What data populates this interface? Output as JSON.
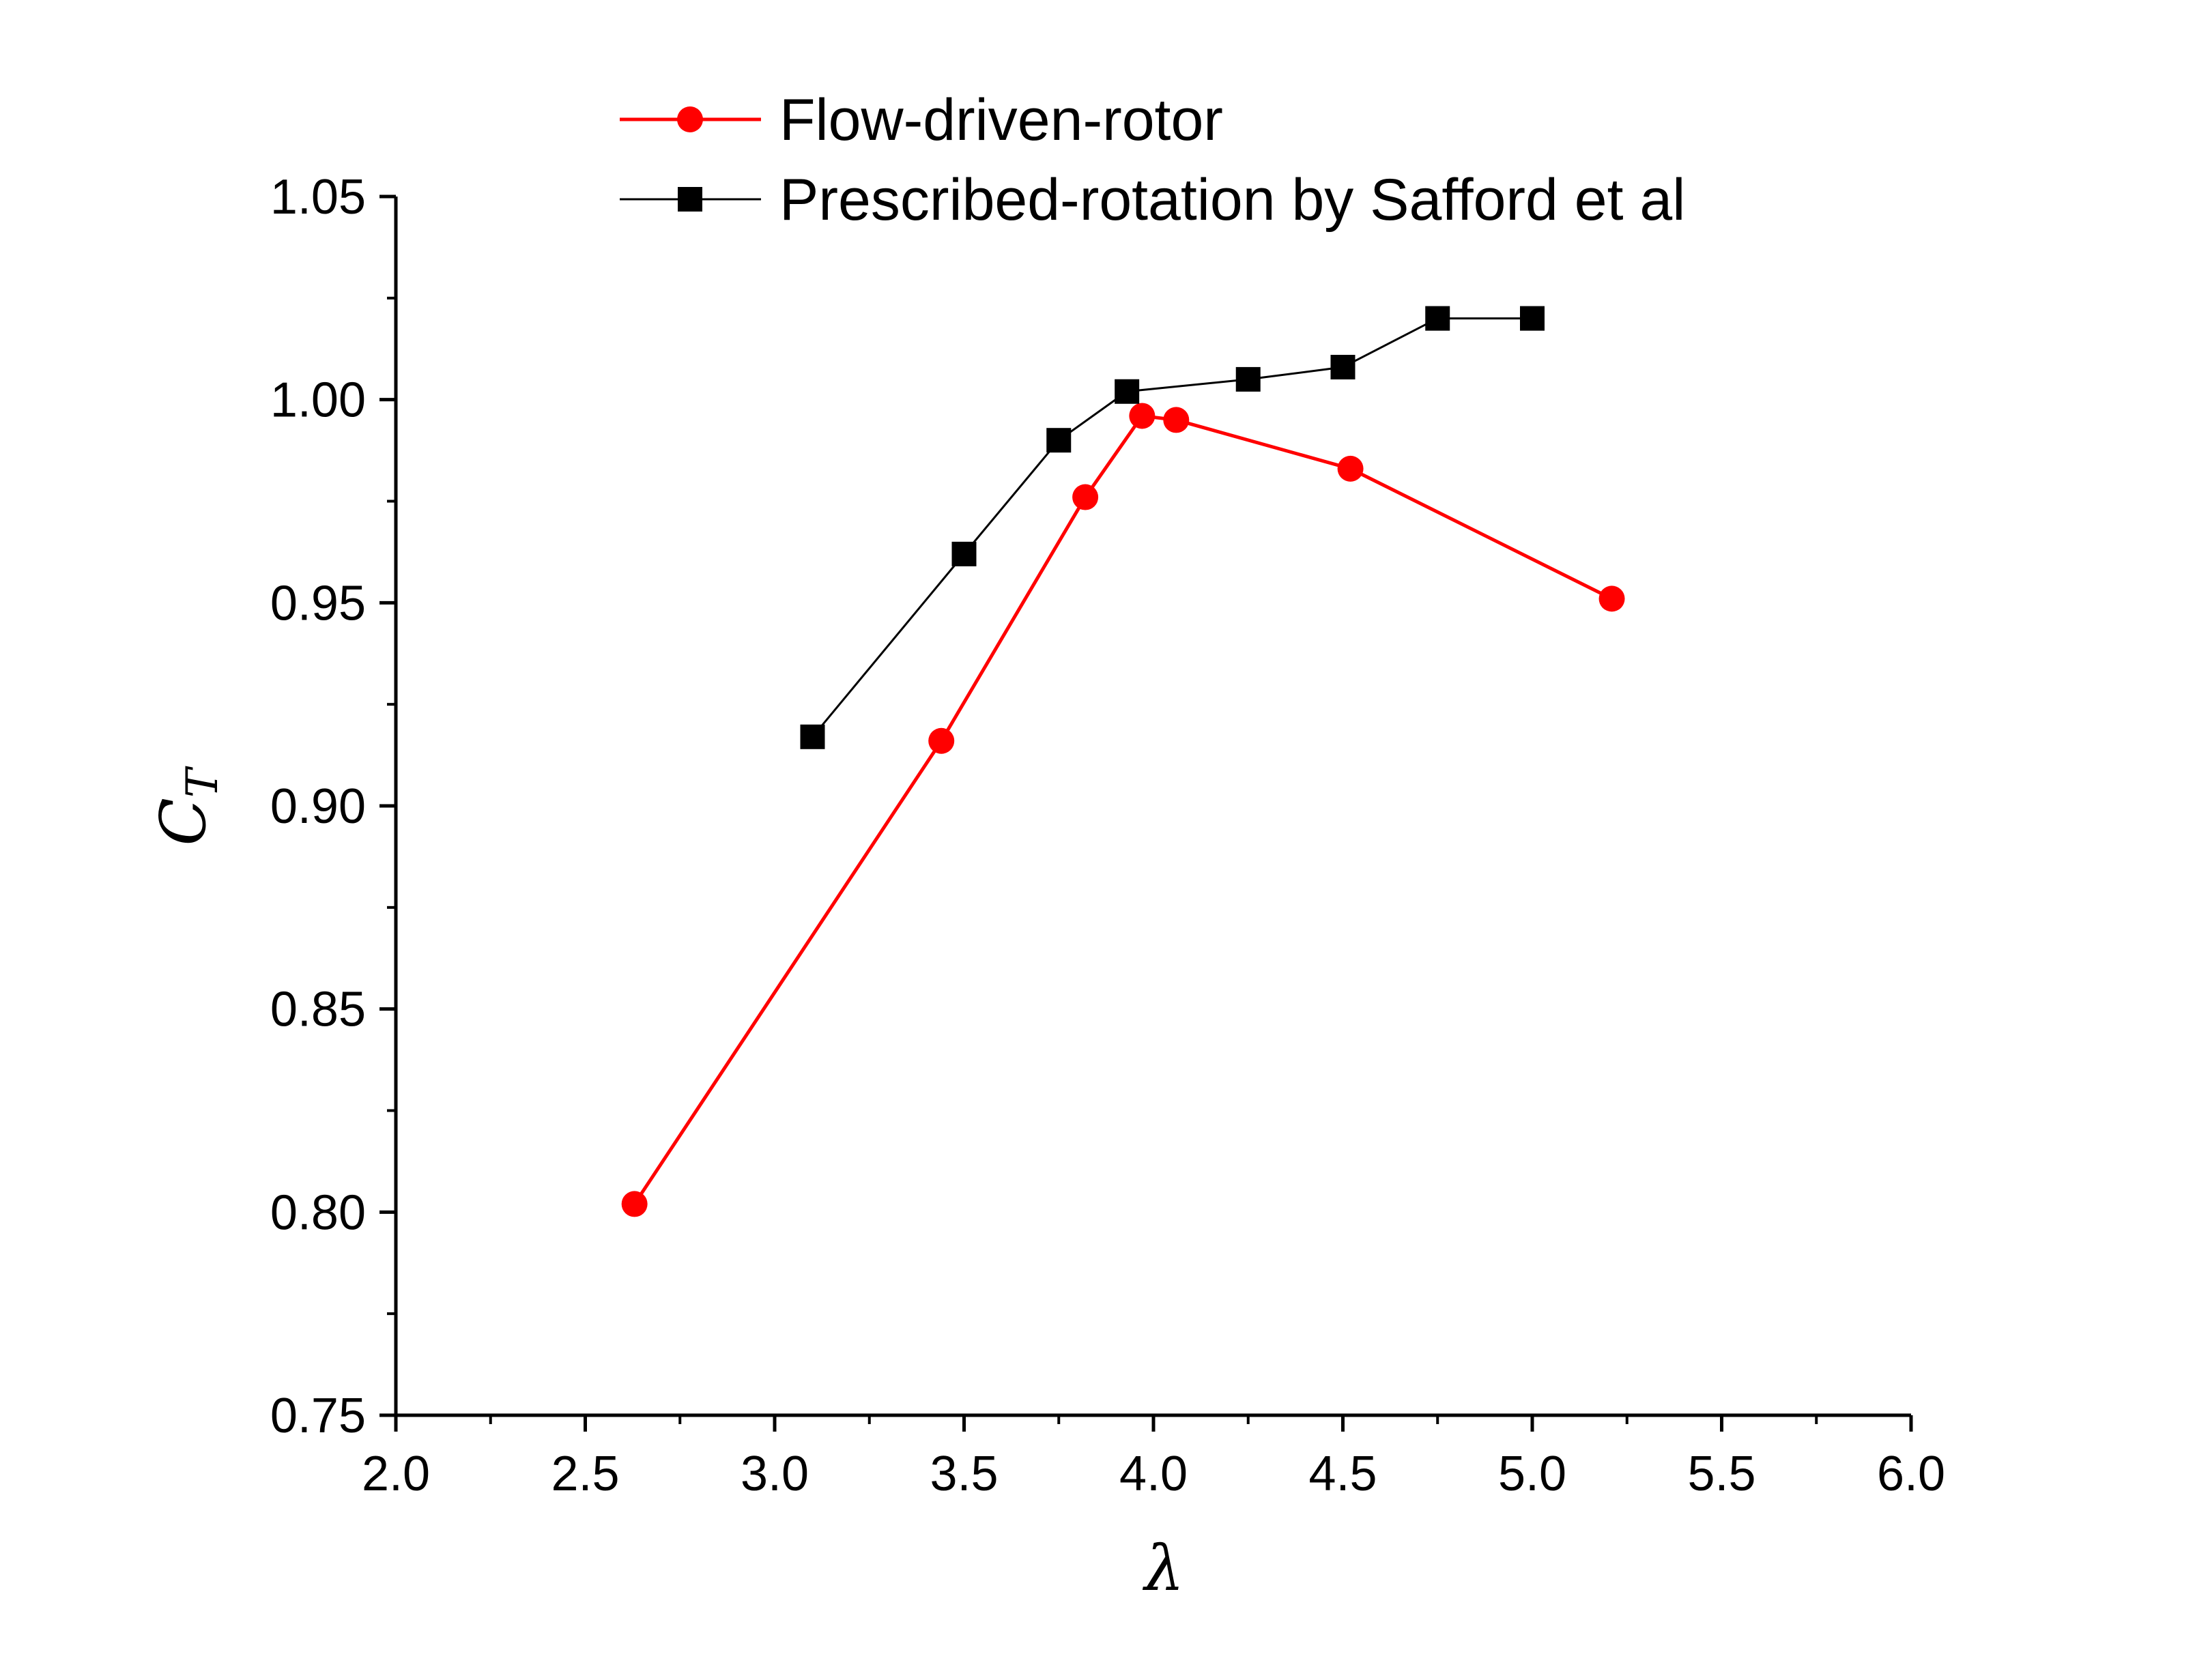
{
  "chart_data": {
    "type": "line",
    "title": "",
    "xlabel": "λ",
    "ylabel_main": "C",
    "ylabel_sub": "T",
    "xlim": [
      2.0,
      6.0
    ],
    "ylim": [
      0.75,
      1.05
    ],
    "xticks": [
      "2.0",
      "2.5",
      "3.0",
      "3.5",
      "4.0",
      "4.5",
      "5.0",
      "5.5",
      "6.0"
    ],
    "yticks": [
      "0.75",
      "0.80",
      "0.85",
      "0.90",
      "0.95",
      "1.00",
      "1.05"
    ],
    "grid": false,
    "legend_position": "top",
    "series": [
      {
        "name": "Flow-driven-rotor",
        "color": "#ff0000",
        "marker": "circle",
        "x": [
          2.63,
          3.44,
          3.82,
          3.97,
          4.06,
          4.52,
          5.21
        ],
        "y": [
          0.802,
          0.916,
          0.976,
          0.996,
          0.995,
          0.983,
          0.951
        ]
      },
      {
        "name": "Prescribed-rotation by Safford et al",
        "color": "#000000",
        "marker": "square",
        "x": [
          3.1,
          3.5,
          3.75,
          3.93,
          4.25,
          4.5,
          4.75,
          5.0
        ],
        "y": [
          0.917,
          0.962,
          0.99,
          1.002,
          1.005,
          1.008,
          1.02,
          1.02
        ]
      }
    ]
  }
}
